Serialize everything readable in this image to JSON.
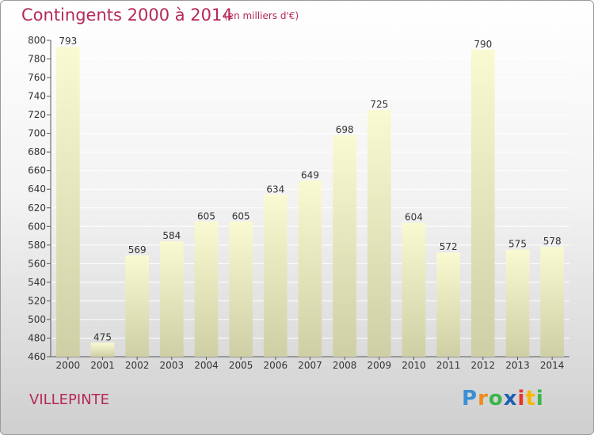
{
  "chart_data": {
    "type": "bar",
    "title": "Contingents 2000 à 2014",
    "subtitle": "(en milliers d'€)",
    "categories": [
      "2000",
      "2001",
      "2002",
      "2003",
      "2004",
      "2005",
      "2006",
      "2007",
      "2008",
      "2009",
      "2010",
      "2011",
      "2012",
      "2013",
      "2014"
    ],
    "values": [
      793,
      475,
      569,
      584,
      605,
      605,
      634,
      649,
      698,
      725,
      604,
      572,
      790,
      575,
      578
    ],
    "ylim": [
      460,
      800
    ],
    "ytick_step": 20,
    "grid": true,
    "xlabel": "",
    "ylabel": ""
  },
  "footer": {
    "city": "VILLEPINTE",
    "logo_letters": [
      "P",
      "r",
      "o",
      "x",
      "i",
      "t",
      "i"
    ],
    "logo_colors": [
      "#3a8fd6",
      "#f08a1c",
      "#3ab54a",
      "#1e5fb3",
      "#e6332a",
      "#f5b800",
      "#3ab54a"
    ]
  },
  "colors": {
    "accent": "#b5295a",
    "bar_top": "#fafad2",
    "bar_bottom": "#cfcfa6"
  }
}
